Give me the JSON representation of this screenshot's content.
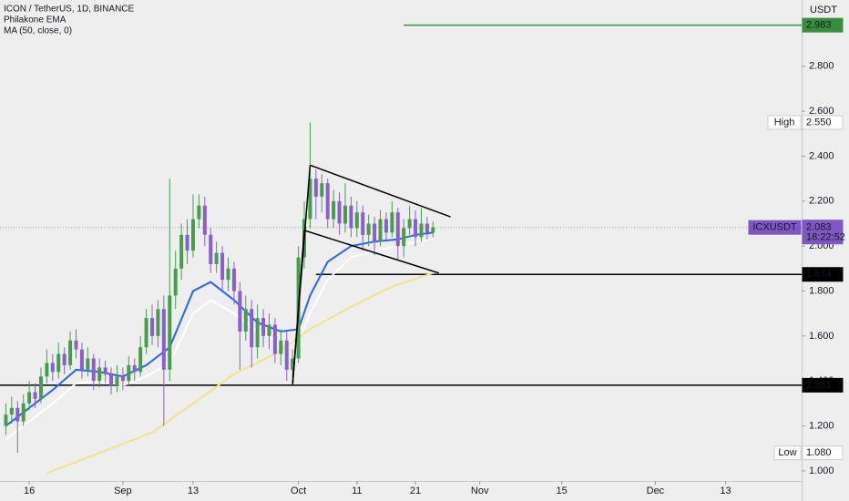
{
  "chart_data": {
    "type": "candlestick",
    "title": "ICON / TetherUS, 1D, BINANCE",
    "y_unit": "USDT",
    "up_color": "#43a047",
    "down_color": "#8e5bd6",
    "xlim": [
      "08-11",
      "12-26"
    ],
    "ylim": [
      0.955,
      3.095
    ],
    "xticks": [
      {
        "value": "08-16",
        "label": "16"
      },
      {
        "value": "09-01",
        "label": "Sep"
      },
      {
        "value": "09-13",
        "label": "13"
      },
      {
        "value": "10-01",
        "label": "Oct"
      },
      {
        "value": "10-11",
        "label": "11"
      },
      {
        "value": "10-21",
        "label": "21"
      },
      {
        "value": "11-01",
        "label": "Nov"
      },
      {
        "value": "11-15",
        "label": "15"
      },
      {
        "value": "12-01",
        "label": "Dec"
      },
      {
        "value": "12-13",
        "label": "13"
      }
    ],
    "yticks": [
      {
        "value": 1.0,
        "label": "1.000"
      },
      {
        "value": 1.2,
        "label": "1.200"
      },
      {
        "value": 1.4,
        "label": "1.400"
      },
      {
        "value": 1.6,
        "label": "1.600"
      },
      {
        "value": 1.8,
        "label": "1.800"
      },
      {
        "value": 2.0,
        "label": "2.000"
      },
      {
        "value": 2.2,
        "label": "2.200"
      },
      {
        "value": 2.4,
        "label": "2.400"
      },
      {
        "value": 2.6,
        "label": "2.600"
      },
      {
        "value": 2.8,
        "label": "2.800"
      }
    ],
    "x": [
      "08-12",
      "08-13",
      "08-14",
      "08-15",
      "08-16",
      "08-17",
      "08-18",
      "08-19",
      "08-20",
      "08-21",
      "08-22",
      "08-23",
      "08-24",
      "08-25",
      "08-26",
      "08-27",
      "08-28",
      "08-29",
      "08-30",
      "08-31",
      "09-01",
      "09-02",
      "09-03",
      "09-04",
      "09-05",
      "09-06",
      "09-07",
      "09-08",
      "09-09",
      "09-10",
      "09-11",
      "09-12",
      "09-13",
      "09-14",
      "09-15",
      "09-16",
      "09-17",
      "09-18",
      "09-19",
      "09-20",
      "09-21",
      "09-22",
      "09-23",
      "09-24",
      "09-25",
      "09-26",
      "09-27",
      "09-28",
      "09-29",
      "09-30",
      "10-01",
      "10-02",
      "10-03",
      "10-04",
      "10-05",
      "10-06",
      "10-07",
      "10-08",
      "10-09",
      "10-10",
      "10-11",
      "10-12",
      "10-13",
      "10-14",
      "10-15",
      "10-16",
      "10-17",
      "10-18",
      "10-19",
      "10-20",
      "10-21",
      "10-22",
      "10-23",
      "10-24"
    ],
    "open": [
      1.2,
      1.25,
      1.28,
      1.22,
      1.3,
      1.35,
      1.32,
      1.42,
      1.48,
      1.44,
      1.52,
      1.47,
      1.58,
      1.54,
      1.45,
      1.5,
      1.4,
      1.46,
      1.43,
      1.38,
      1.42,
      1.4,
      1.47,
      1.44,
      1.55,
      1.68,
      1.6,
      1.72,
      1.45,
      1.78,
      1.9,
      2.05,
      1.98,
      2.12,
      2.18,
      2.05,
      1.92,
      1.97,
      1.85,
      1.9,
      1.8,
      1.62,
      1.72,
      1.55,
      1.68,
      1.6,
      1.65,
      1.52,
      1.58,
      1.45,
      1.5,
      1.95,
      2.12,
      2.3,
      2.22,
      2.28,
      2.12,
      2.2,
      2.1,
      2.18,
      2.08,
      2.15,
      2.05,
      2.1,
      2.02,
      2.12,
      2.06,
      2.15,
      2.0,
      2.08,
      2.12,
      2.04,
      2.1,
      2.06
    ],
    "high": [
      1.3,
      1.33,
      1.31,
      1.34,
      1.4,
      1.39,
      1.46,
      1.54,
      1.52,
      1.57,
      1.55,
      1.62,
      1.63,
      1.57,
      1.55,
      1.52,
      1.5,
      1.49,
      1.46,
      1.47,
      1.46,
      1.51,
      1.5,
      1.6,
      1.72,
      1.74,
      1.76,
      1.78,
      2.3,
      1.98,
      2.1,
      2.12,
      2.23,
      2.23,
      2.22,
      2.08,
      2.02,
      2.0,
      1.95,
      1.93,
      1.84,
      1.78,
      1.76,
      1.74,
      1.72,
      1.7,
      1.68,
      1.63,
      1.62,
      1.54,
      2.0,
      2.2,
      2.55,
      2.34,
      2.32,
      2.3,
      2.25,
      2.24,
      2.28,
      2.22,
      2.2,
      2.18,
      2.14,
      2.13,
      2.16,
      2.15,
      2.2,
      2.17,
      2.12,
      2.18,
      2.16,
      2.17,
      2.13,
      2.11
    ],
    "low": [
      1.16,
      1.21,
      1.08,
      1.2,
      1.27,
      1.28,
      1.3,
      1.39,
      1.4,
      1.41,
      1.43,
      1.45,
      1.5,
      1.41,
      1.42,
      1.36,
      1.37,
      1.39,
      1.34,
      1.35,
      1.36,
      1.38,
      1.4,
      1.42,
      1.52,
      1.56,
      1.55,
      1.2,
      1.4,
      1.72,
      1.85,
      1.92,
      1.95,
      2.08,
      2.0,
      1.88,
      1.88,
      1.8,
      1.8,
      1.74,
      1.45,
      1.58,
      1.46,
      1.5,
      1.55,
      1.54,
      1.48,
      1.47,
      1.4,
      1.38,
      1.48,
      1.9,
      2.08,
      2.12,
      2.15,
      2.08,
      2.08,
      2.05,
      2.06,
      2.04,
      2.04,
      1.98,
      2.0,
      1.96,
      2.0,
      2.02,
      2.04,
      1.94,
      1.95,
      2.05,
      2.0,
      2.02,
      2.03,
      2.04
    ],
    "close": [
      1.25,
      1.28,
      1.22,
      1.3,
      1.35,
      1.32,
      1.42,
      1.48,
      1.44,
      1.52,
      1.47,
      1.58,
      1.54,
      1.45,
      1.5,
      1.4,
      1.46,
      1.43,
      1.38,
      1.42,
      1.4,
      1.47,
      1.44,
      1.55,
      1.68,
      1.6,
      1.72,
      1.45,
      1.78,
      1.9,
      2.05,
      1.98,
      2.12,
      2.18,
      2.05,
      1.92,
      1.97,
      1.85,
      1.9,
      1.8,
      1.62,
      1.72,
      1.55,
      1.68,
      1.6,
      1.65,
      1.52,
      1.58,
      1.45,
      1.5,
      1.95,
      2.12,
      2.3,
      2.22,
      2.28,
      2.12,
      2.2,
      2.1,
      2.18,
      2.08,
      2.15,
      2.05,
      2.1,
      2.02,
      2.12,
      2.06,
      2.15,
      2.0,
      2.08,
      2.12,
      2.04,
      2.1,
      2.06,
      2.083
    ],
    "indicators": [
      {
        "name": "Philakone EMA",
        "lines": [
          {
            "color": "#2962ff",
            "x": [
              "08-12",
              "08-16",
              "08-20",
              "08-24",
              "08-28",
              "09-01",
              "09-05",
              "09-09",
              "09-13",
              "09-16",
              "09-20",
              "09-24",
              "09-28",
              "10-01",
              "10-03",
              "10-06",
              "10-10",
              "10-14",
              "10-18",
              "10-21",
              "10-24"
            ],
            "values": [
              1.2,
              1.28,
              1.36,
              1.45,
              1.44,
              1.42,
              1.47,
              1.55,
              1.8,
              1.84,
              1.76,
              1.66,
              1.62,
              1.63,
              1.78,
              1.93,
              2.0,
              2.02,
              2.03,
              2.05,
              2.06
            ]
          },
          {
            "color": "#ffffff",
            "x": [
              "08-12",
              "08-16",
              "08-20",
              "08-24",
              "08-28",
              "09-01",
              "09-05",
              "09-09",
              "09-13",
              "09-16",
              "09-20",
              "09-24",
              "09-28",
              "10-01",
              "10-03",
              "10-06",
              "10-10",
              "10-14",
              "10-18",
              "10-21",
              "10-24"
            ],
            "values": [
              1.14,
              1.22,
              1.3,
              1.39,
              1.4,
              1.38,
              1.42,
              1.48,
              1.7,
              1.76,
              1.7,
              1.62,
              1.57,
              1.58,
              1.7,
              1.85,
              1.95,
              1.98,
              2.0,
              2.02,
              2.03
            ]
          }
        ]
      },
      {
        "name": "MA (50, close, 0)",
        "lines": [
          {
            "color": "#f2e38a",
            "x": [
              "08-19",
              "08-28",
              "09-06",
              "09-13",
              "09-20",
              "09-27",
              "10-03",
              "10-10",
              "10-17",
              "10-24"
            ],
            "values": [
              0.99,
              1.08,
              1.17,
              1.3,
              1.43,
              1.52,
              1.63,
              1.73,
              1.82,
              1.88
            ]
          }
        ]
      }
    ],
    "drawings": [
      {
        "color": "#000000",
        "x": [
          "09-30",
          "10-03"
        ],
        "values": [
          1.381,
          2.36
        ]
      },
      {
        "color": "#000000",
        "x": [
          "09-30",
          "10-02"
        ],
        "values": [
          1.381,
          2.07
        ]
      },
      {
        "color": "#000000",
        "x": [
          "10-03",
          "10-27"
        ],
        "values": [
          2.36,
          2.13
        ]
      },
      {
        "color": "#000000",
        "x": [
          "10-02",
          "10-25"
        ],
        "values": [
          2.07,
          1.88
        ]
      }
    ],
    "price_tags": [
      {
        "value": 2.983,
        "label": "2.983",
        "bg": "#388e3c",
        "text_color": "#ffffff",
        "line_from": "10-19",
        "line_color": "#388e3c"
      },
      {
        "title": "High",
        "value": 2.55,
        "label": "2.550",
        "bg": "#ffffff",
        "text_color": "#555555"
      },
      {
        "title": "ICXUSDT",
        "value": 2.083,
        "label": "2.083",
        "countdown": "18:22:52",
        "bg": "#7e57c2",
        "text_color": "#ffffff",
        "line_from": "08-11",
        "line_color": "#9e9e9e",
        "line_style": "dotted"
      },
      {
        "value": 1.874,
        "label": "1.874",
        "bg": "#000000",
        "text_color": "#ffffff",
        "line_from": "10-04",
        "line_color": "#000000"
      },
      {
        "value": 1.381,
        "label": "1.381",
        "bg": "#000000",
        "text_color": "#ffffff",
        "line_from": "08-11",
        "line_color": "#000000"
      },
      {
        "title": "Low",
        "value": 1.08,
        "label": "1.080",
        "bg": "#ffffff",
        "text_color": "#555555"
      }
    ]
  }
}
